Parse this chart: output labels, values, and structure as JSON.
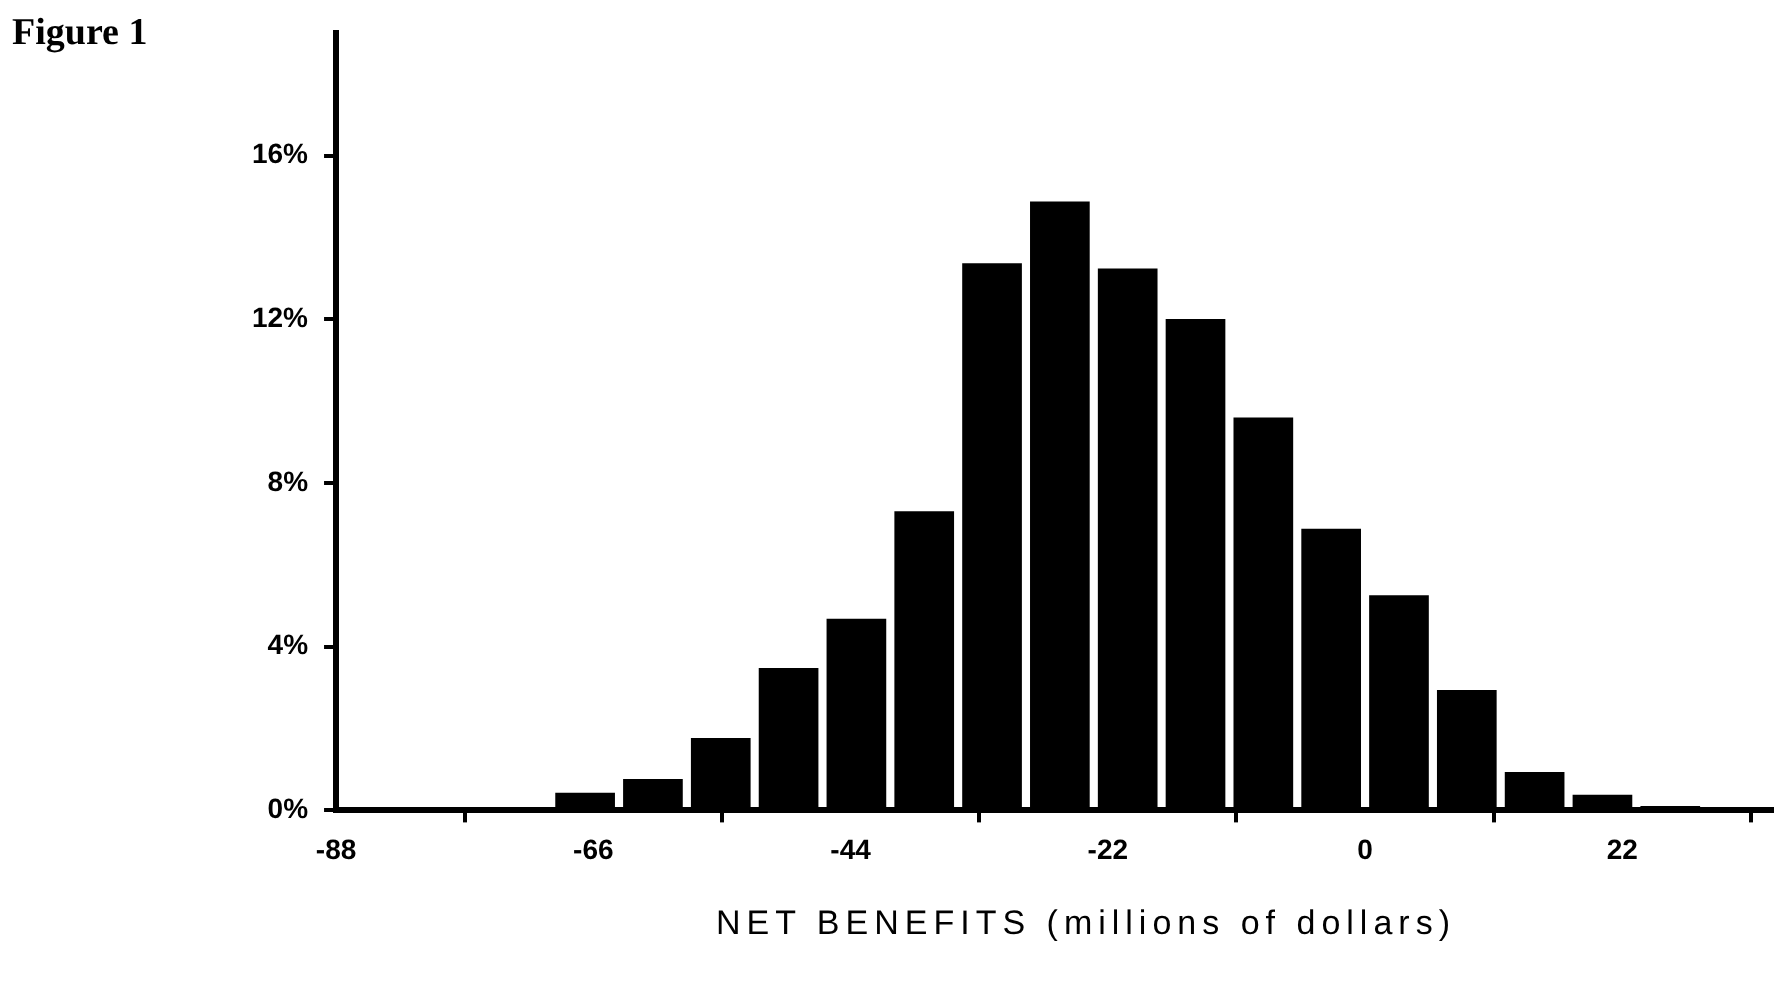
{
  "chart_data": {
    "type": "histogram",
    "title": "Figure 1",
    "xlabel": "NET BENEFITS (millions of dollars)",
    "bins": [
      -69.6,
      -63.8,
      -58,
      -52.2,
      -46.4,
      -40.6,
      -34.8,
      -29,
      -23.2,
      -17.4,
      -11.6,
      -5.8,
      0,
      5.8,
      11.6,
      17.4,
      23.2,
      29,
      34.8
    ],
    "values": [
      0.43,
      0.77,
      1.77,
      3.48,
      4.68,
      7.31,
      13.37,
      14.88,
      13.24,
      12.01,
      9.6,
      6.88,
      5.26,
      2.94,
      0.94,
      0.38,
      0.11,
      0.05
    ],
    "color": "#000000",
    "xlim": [
      -88,
      34.8
    ],
    "xticks": [
      -88,
      -66,
      -44,
      -22,
      0,
      22
    ],
    "ylim": [
      0,
      19
    ],
    "yticks": [
      {
        "value": 0,
        "label": "0%"
      },
      {
        "value": 4,
        "label": "4%"
      },
      {
        "value": 8,
        "label": "8%"
      },
      {
        "value": 12,
        "label": "12%"
      },
      {
        "value": 16,
        "label": "16%"
      }
    ],
    "grid": false,
    "legend": false
  }
}
